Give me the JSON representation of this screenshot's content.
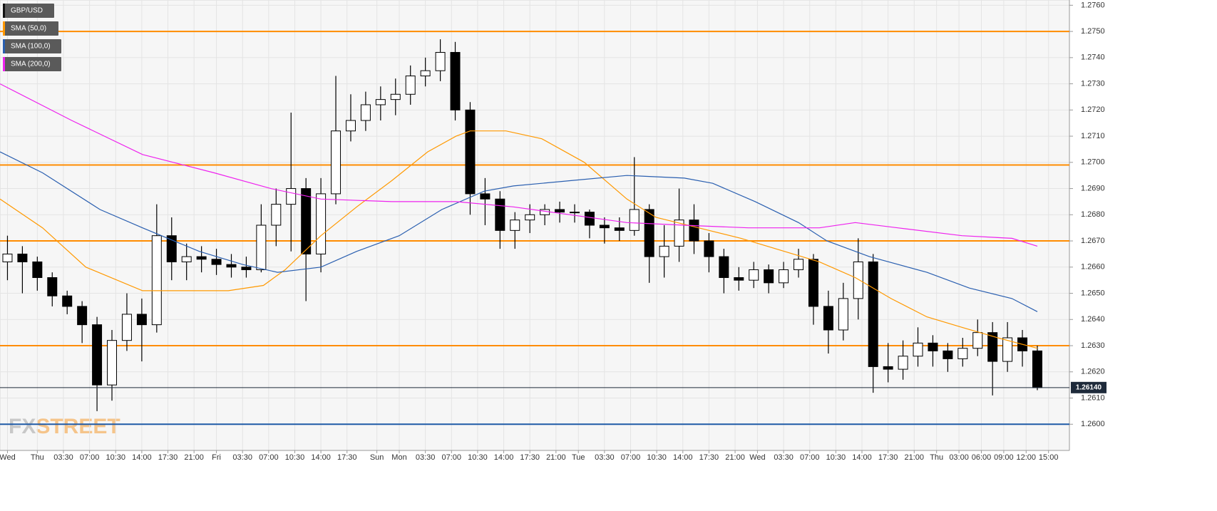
{
  "chart_data": {
    "type": "candlestick",
    "legend": "upper left",
    "grid": true,
    "xlim": [
      0,
      143.3
    ],
    "ylim": [
      1.259,
      1.2762
    ],
    "yticks": [
      {
        "value": 1.26,
        "label": "1.2600"
      },
      {
        "value": 1.261,
        "label": "1.2610"
      },
      {
        "value": 1.262,
        "label": "1.2620"
      },
      {
        "value": 1.263,
        "label": "1.2630"
      },
      {
        "value": 1.264,
        "label": "1.2640"
      },
      {
        "value": 1.265,
        "label": "1.2650"
      },
      {
        "value": 1.266,
        "label": "1.2660"
      },
      {
        "value": 1.267,
        "label": "1.2670"
      },
      {
        "value": 1.268,
        "label": "1.2680"
      },
      {
        "value": 1.269,
        "label": "1.2690"
      },
      {
        "value": 1.27,
        "label": "1.2700"
      },
      {
        "value": 1.271,
        "label": "1.2710"
      },
      {
        "value": 1.272,
        "label": "1.2720"
      },
      {
        "value": 1.273,
        "label": "1.2730"
      },
      {
        "value": 1.274,
        "label": "1.2740"
      },
      {
        "value": 1.275,
        "label": "1.2750"
      },
      {
        "value": 1.276,
        "label": "1.2760"
      }
    ],
    "xticks": [
      {
        "value": 1,
        "label": "Wed"
      },
      {
        "value": 5,
        "label": "Thu"
      },
      {
        "value": 8.5,
        "label": "03:30"
      },
      {
        "value": 12,
        "label": "07:00"
      },
      {
        "value": 15.5,
        "label": "10:30"
      },
      {
        "value": 19,
        "label": "14:00"
      },
      {
        "value": 22.5,
        "label": "17:30"
      },
      {
        "value": 26,
        "label": "21:00"
      },
      {
        "value": 29,
        "label": "Fri"
      },
      {
        "value": 32.5,
        "label": "03:30"
      },
      {
        "value": 36,
        "label": "07:00"
      },
      {
        "value": 39.5,
        "label": "10:30"
      },
      {
        "value": 43,
        "label": "14:00"
      },
      {
        "value": 46.5,
        "label": "17:30"
      },
      {
        "value": 50.5,
        "label": "Sun"
      },
      {
        "value": 53.5,
        "label": "Mon"
      },
      {
        "value": 57,
        "label": "03:30"
      },
      {
        "value": 60.5,
        "label": "07:00"
      },
      {
        "value": 64,
        "label": "10:30"
      },
      {
        "value": 67.5,
        "label": "14:00"
      },
      {
        "value": 71,
        "label": "17:30"
      },
      {
        "value": 74.5,
        "label": "21:00"
      },
      {
        "value": 77.5,
        "label": "Tue"
      },
      {
        "value": 81,
        "label": "03:30"
      },
      {
        "value": 84.5,
        "label": "07:00"
      },
      {
        "value": 88,
        "label": "10:30"
      },
      {
        "value": 91.5,
        "label": "14:00"
      },
      {
        "value": 95,
        "label": "17:30"
      },
      {
        "value": 98.5,
        "label": "21:00"
      },
      {
        "value": 101.5,
        "label": "Wed"
      },
      {
        "value": 105,
        "label": "03:30"
      },
      {
        "value": 108.5,
        "label": "07:00"
      },
      {
        "value": 112,
        "label": "10:30"
      },
      {
        "value": 115.5,
        "label": "14:00"
      },
      {
        "value": 119,
        "label": "17:30"
      },
      {
        "value": 122.5,
        "label": "21:00"
      },
      {
        "value": 125.5,
        "label": "Thu"
      },
      {
        "value": 128.5,
        "label": "03:00"
      },
      {
        "value": 131.5,
        "label": "06:00"
      },
      {
        "value": 134.5,
        "label": "09:00"
      },
      {
        "value": 137.5,
        "label": "12:00"
      },
      {
        "value": 140.5,
        "label": "15:00"
      }
    ],
    "x": [
      1,
      3,
      5,
      7,
      9,
      11,
      13,
      15,
      17,
      19,
      21,
      23,
      25,
      27,
      29,
      31,
      33,
      35,
      37,
      39,
      41,
      43,
      45,
      47,
      49,
      51,
      53,
      55,
      57,
      59,
      61,
      63,
      65,
      67,
      69,
      71,
      73,
      75,
      77,
      79,
      81,
      83,
      85,
      87,
      89,
      91,
      93,
      95,
      97,
      99,
      101,
      103,
      105,
      107,
      109,
      111,
      113,
      115,
      117,
      119,
      121,
      123,
      125,
      127,
      129,
      131,
      133,
      135,
      137,
      139
    ],
    "series": [
      {
        "name": "GBP/USD",
        "color": "#000000",
        "ohlc": [
          [
            1.2662,
            1.2672,
            1.2655,
            1.2665
          ],
          [
            1.2665,
            1.2668,
            1.265,
            1.2662
          ],
          [
            1.2662,
            1.2664,
            1.2651,
            1.2656
          ],
          [
            1.2656,
            1.2658,
            1.2645,
            1.2649
          ],
          [
            1.2649,
            1.2651,
            1.2642,
            1.2645
          ],
          [
            1.2645,
            1.2647,
            1.2631,
            1.2638
          ],
          [
            1.2638,
            1.2641,
            1.2605,
            1.2615
          ],
          [
            1.2615,
            1.2636,
            1.2609,
            1.2632
          ],
          [
            1.2632,
            1.265,
            1.2628,
            1.2642
          ],
          [
            1.2642,
            1.2648,
            1.2624,
            1.2638
          ],
          [
            1.2638,
            1.2684,
            1.2635,
            1.2672
          ],
          [
            1.2672,
            1.2679,
            1.2655,
            1.2662
          ],
          [
            1.2662,
            1.2669,
            1.2655,
            1.2664
          ],
          [
            1.2664,
            1.2668,
            1.2658,
            1.2663
          ],
          [
            1.2663,
            1.2667,
            1.2657,
            1.2661
          ],
          [
            1.2661,
            1.2665,
            1.2656,
            1.266
          ],
          [
            1.266,
            1.2664,
            1.2656,
            1.2659
          ],
          [
            1.2659,
            1.2684,
            1.2658,
            1.2676
          ],
          [
            1.2676,
            1.269,
            1.2668,
            1.2684
          ],
          [
            1.2684,
            1.2719,
            1.2666,
            1.269
          ],
          [
            1.269,
            1.2694,
            1.2647,
            1.2665
          ],
          [
            1.2665,
            1.2694,
            1.2658,
            1.2688
          ],
          [
            1.2688,
            1.2733,
            1.2684,
            1.2712
          ],
          [
            1.2712,
            1.2726,
            1.2708,
            1.2716
          ],
          [
            1.2716,
            1.2727,
            1.2712,
            1.2722
          ],
          [
            1.2722,
            1.2729,
            1.2716,
            1.2724
          ],
          [
            1.2724,
            1.2732,
            1.2718,
            1.2726
          ],
          [
            1.2726,
            1.2737,
            1.2722,
            1.2733
          ],
          [
            1.2733,
            1.274,
            1.2729,
            1.2735
          ],
          [
            1.2735,
            1.2747,
            1.2731,
            1.2742
          ],
          [
            1.2742,
            1.2746,
            1.2716,
            1.272
          ],
          [
            1.272,
            1.2723,
            1.268,
            1.2688
          ],
          [
            1.2688,
            1.2694,
            1.2676,
            1.2686
          ],
          [
            1.2686,
            1.2689,
            1.2667,
            1.2674
          ],
          [
            1.2674,
            1.2681,
            1.2667,
            1.2678
          ],
          [
            1.2678,
            1.2684,
            1.2673,
            1.268
          ],
          [
            1.268,
            1.2684,
            1.2676,
            1.2682
          ],
          [
            1.2682,
            1.2685,
            1.2677,
            1.2681
          ],
          [
            1.2681,
            1.2684,
            1.2677,
            1.2681
          ],
          [
            1.2681,
            1.2682,
            1.2671,
            1.2676
          ],
          [
            1.2676,
            1.2679,
            1.2669,
            1.2675
          ],
          [
            1.2675,
            1.2679,
            1.267,
            1.2674
          ],
          [
            1.2674,
            1.2702,
            1.2672,
            1.2682
          ],
          [
            1.2682,
            1.2684,
            1.2654,
            1.2664
          ],
          [
            1.2664,
            1.2676,
            1.2656,
            1.2668
          ],
          [
            1.2668,
            1.269,
            1.2662,
            1.2678
          ],
          [
            1.2678,
            1.2684,
            1.2665,
            1.267
          ],
          [
            1.267,
            1.2673,
            1.2658,
            1.2664
          ],
          [
            1.2664,
            1.2667,
            1.265,
            1.2656
          ],
          [
            1.2656,
            1.266,
            1.2651,
            1.2655
          ],
          [
            1.2655,
            1.2662,
            1.2652,
            1.2659
          ],
          [
            1.2659,
            1.2661,
            1.265,
            1.2654
          ],
          [
            1.2654,
            1.2662,
            1.2652,
            1.2659
          ],
          [
            1.2659,
            1.2667,
            1.2656,
            1.2663
          ],
          [
            1.2663,
            1.2665,
            1.2638,
            1.2645
          ],
          [
            1.2645,
            1.2651,
            1.2627,
            1.2636
          ],
          [
            1.2636,
            1.2654,
            1.2632,
            1.2648
          ],
          [
            1.2648,
            1.2671,
            1.264,
            1.2662
          ],
          [
            1.2662,
            1.2665,
            1.2612,
            1.2622
          ],
          [
            1.2622,
            1.2631,
            1.2616,
            1.2621
          ],
          [
            1.2621,
            1.2632,
            1.2617,
            1.2626
          ],
          [
            1.2626,
            1.2637,
            1.2622,
            1.2631
          ],
          [
            1.2631,
            1.2634,
            1.2622,
            1.2628
          ],
          [
            1.2628,
            1.2631,
            1.262,
            1.2625
          ],
          [
            1.2625,
            1.2633,
            1.2622,
            1.2629
          ],
          [
            1.2629,
            1.264,
            1.2626,
            1.2635
          ],
          [
            1.2635,
            1.2639,
            1.2611,
            1.2624
          ],
          [
            1.2624,
            1.2639,
            1.262,
            1.2633
          ],
          [
            1.2633,
            1.2636,
            1.2622,
            1.2628
          ],
          [
            1.2628,
            1.263,
            1.2613,
            1.2614
          ]
        ]
      },
      {
        "name": "SMA (50,0)",
        "color": "#ff9900",
        "x": [
          0,
          5.7,
          11.5,
          19.1,
          23.9,
          30.6,
          35.3,
          38.2,
          43,
          47.8,
          52.5,
          57.3,
          61.1,
          63,
          67.8,
          72.6,
          78.3,
          84,
          87.9,
          93.6,
          99.3,
          105.1,
          109.8,
          114.6,
          119.4,
          124.2,
          128.9,
          133.7,
          139
        ],
        "values": [
          1.2686,
          1.2675,
          1.266,
          1.2651,
          1.2651,
          1.2651,
          1.2653,
          1.2659,
          1.2672,
          1.2683,
          1.2693,
          1.2704,
          1.271,
          1.2712,
          1.2712,
          1.2709,
          1.27,
          1.2686,
          1.2679,
          1.2675,
          1.2671,
          1.2666,
          1.2662,
          1.2656,
          1.2648,
          1.2641,
          1.2637,
          1.2633,
          1.2629
        ]
      },
      {
        "name": "SMA (100,0)",
        "color": "#2a5fb0",
        "x": [
          0,
          5.7,
          13.4,
          19.1,
          26.7,
          32.5,
          37.2,
          43,
          47.8,
          53.5,
          59.2,
          64.9,
          68.8,
          76.4,
          84,
          91.7,
          95.5,
          101.2,
          107,
          110.8,
          116.5,
          124.2,
          129.9,
          135.6,
          139
        ],
        "values": [
          1.2704,
          1.2696,
          1.2682,
          1.2675,
          1.2666,
          1.2661,
          1.2658,
          1.266,
          1.2666,
          1.2672,
          1.2682,
          1.2689,
          1.2691,
          1.2693,
          1.2695,
          1.2694,
          1.2692,
          1.2685,
          1.2677,
          1.267,
          1.2664,
          1.2658,
          1.2652,
          1.2648,
          1.2643
        ]
      },
      {
        "name": "SMA (200,0)",
        "color": "#ee22ee",
        "x": [
          0,
          9.6,
          19.1,
          28.7,
          36.3,
          43,
          52.5,
          61.1,
          68.8,
          76.4,
          84,
          91.7,
          100.3,
          109.8,
          114.6,
          120.3,
          128.9,
          135.6,
          139
        ],
        "values": [
          1.273,
          1.2716,
          1.2703,
          1.2696,
          1.269,
          1.2686,
          1.2685,
          1.2685,
          1.2683,
          1.268,
          1.2677,
          1.2676,
          1.2675,
          1.2675,
          1.2677,
          1.2675,
          1.2672,
          1.2671,
          1.2668
        ]
      }
    ],
    "levels": [
      {
        "value": 1.275,
        "color": "#ff8c00"
      },
      {
        "value": 1.2699,
        "color": "#ff8c00"
      },
      {
        "value": 1.267,
        "color": "#ff8c00"
      },
      {
        "value": 1.263,
        "color": "#ff8c00"
      },
      {
        "value": 1.26,
        "color": "#1f5aa6"
      }
    ],
    "last_price": {
      "value": 1.2614,
      "label": "1.26140",
      "color": "#1e2a3a"
    },
    "watermark": [
      "FX",
      "STREET"
    ]
  }
}
